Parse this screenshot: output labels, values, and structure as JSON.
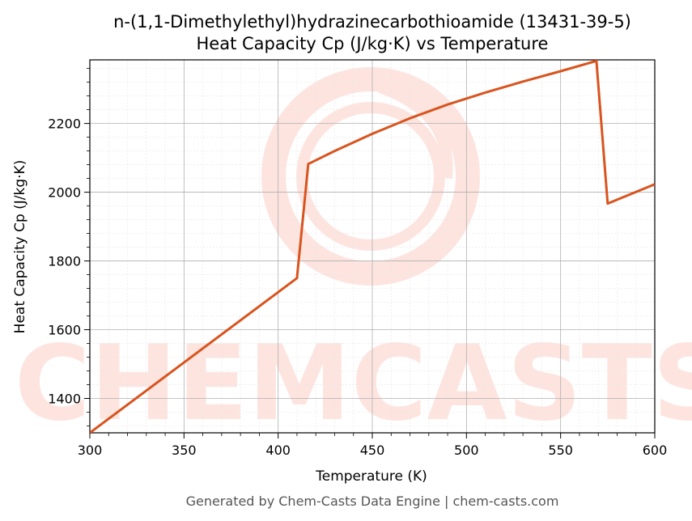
{
  "chart_data": {
    "type": "line",
    "title_line1": "n-(1,1-Dimethylethyl)hydrazinecarbothioamide (13431-39-5)",
    "title_line2": "Heat Capacity Cp (J/kg·K) vs Temperature",
    "xlabel": "Temperature (K)",
    "ylabel": "Heat Capacity Cp (J/kg·K)",
    "xlim": [
      300,
      600
    ],
    "ylim": [
      1300,
      2385
    ],
    "x_ticks": [
      300,
      350,
      400,
      450,
      500,
      550,
      600
    ],
    "y_ticks": [
      1400,
      1600,
      1800,
      2000,
      2200
    ],
    "grid": true,
    "line_color": "#d9541e",
    "series": [
      {
        "x": [
          300,
          410,
          416,
          430,
          450,
          470,
          490,
          510,
          530,
          550,
          569,
          575,
          600
        ],
        "y": [
          1300,
          1750,
          2082,
          2120,
          2170,
          2215,
          2255,
          2290,
          2322,
          2352,
          2382,
          1967,
          2023
        ]
      }
    ]
  },
  "watermark": {
    "text": "CHEMCASTS",
    "color": "#fde0da"
  },
  "footer": "Generated by Chem-Casts Data Engine | chem-casts.com"
}
